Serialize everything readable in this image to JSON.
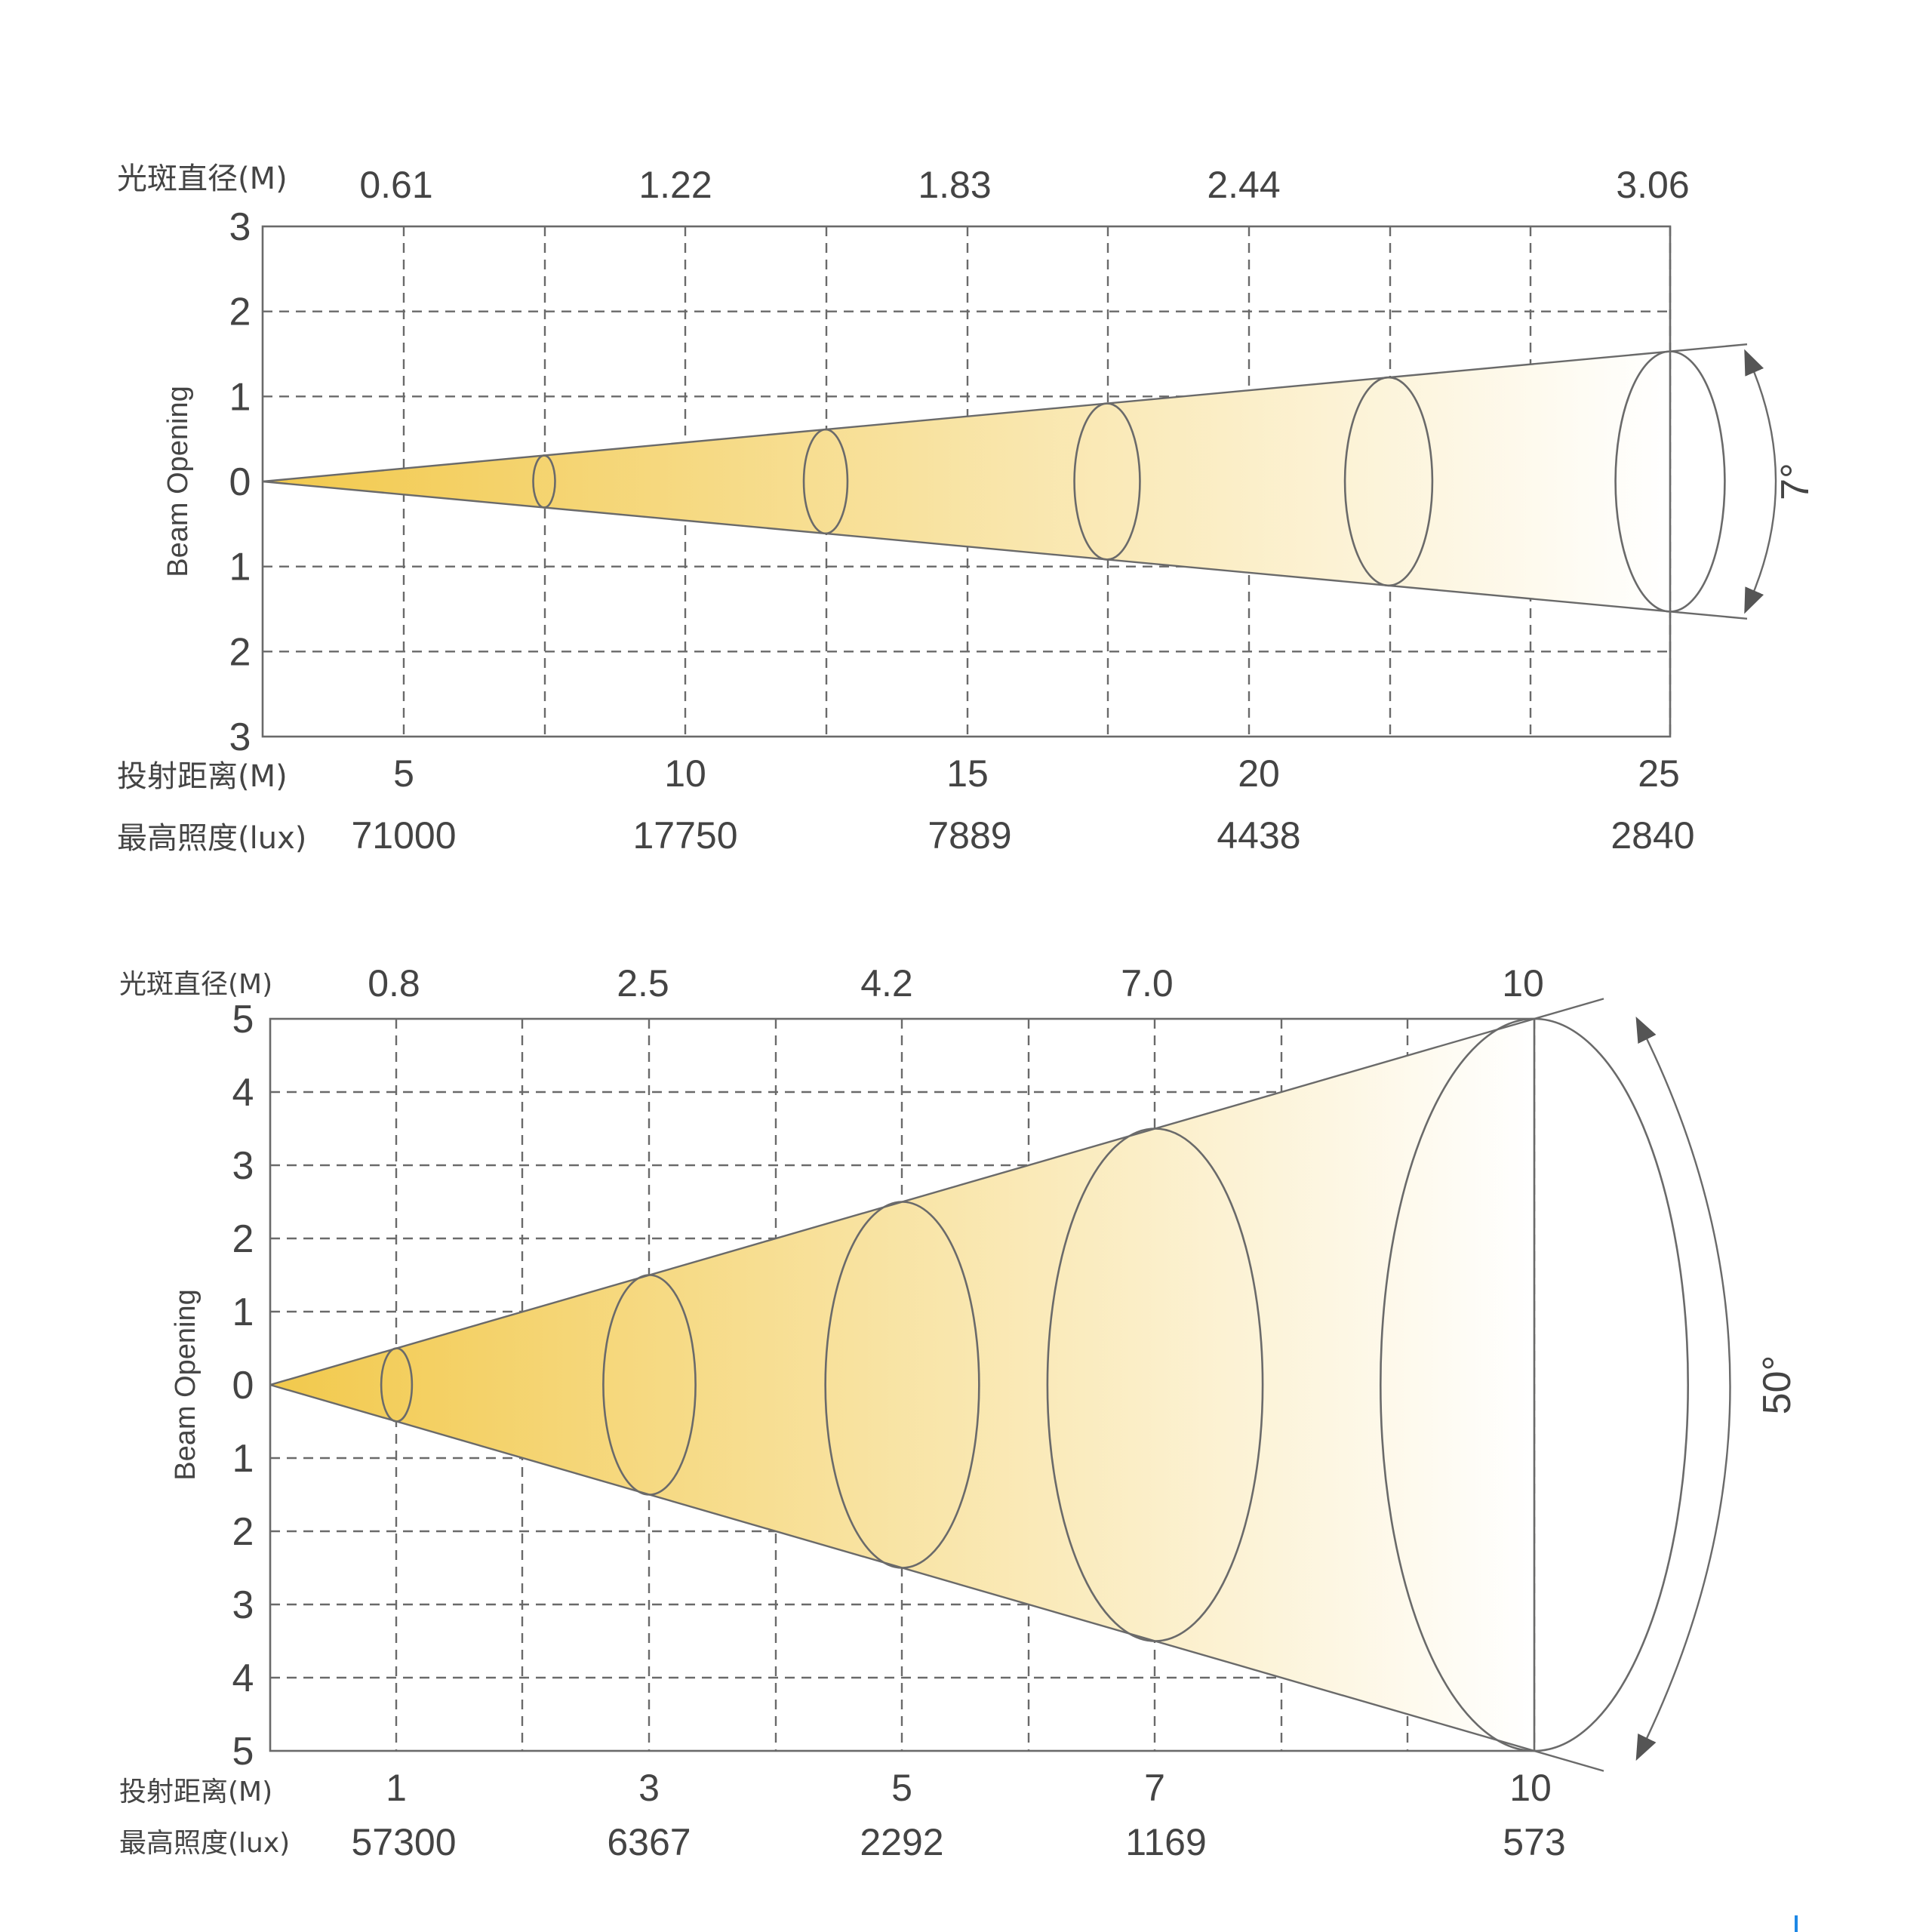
{
  "chart_data": [
    {
      "type": "diagram",
      "angle_label": "7°",
      "ylabel": "Beam Opening",
      "y_ticks": [
        "3",
        "2",
        "1",
        "0",
        "1",
        "2",
        "3"
      ],
      "row_labels": {
        "diameter": "光斑直径(M)",
        "distance": "投射距离(M)",
        "illuminance": "最高照度(lux)"
      },
      "distance": [
        "5",
        "10",
        "15",
        "20",
        "25"
      ],
      "diameter": [
        "0.61",
        "1.22",
        "1.83",
        "2.44",
        "3.06"
      ],
      "illuminance": [
        "71000",
        "17750",
        "7889",
        "4438",
        "2840"
      ],
      "distance_values": [
        5,
        10,
        15,
        20,
        25
      ],
      "diameter_values": [
        0.61,
        1.22,
        1.83,
        2.44,
        3.06
      ],
      "x_range": [
        0,
        25
      ],
      "y_range": [
        -3,
        3
      ],
      "grid": true
    },
    {
      "type": "diagram",
      "angle_label": "50°",
      "ylabel": "Beam Opening",
      "y_ticks": [
        "5",
        "4",
        "3",
        "2",
        "1",
        "0",
        "1",
        "2",
        "3",
        "4",
        "5"
      ],
      "row_labels": {
        "diameter": "光斑直径(M)",
        "distance": "投射距离(M)",
        "illuminance": "最高照度(lux)"
      },
      "distance": [
        "1",
        "3",
        "5",
        "7",
        "10"
      ],
      "diameter": [
        "0.8",
        "2.5",
        "4.2",
        "7.0",
        "10"
      ],
      "illuminance": [
        "57300",
        "6367",
        "2292",
        "1169",
        "573"
      ],
      "distance_values": [
        1,
        3,
        5,
        7,
        10
      ],
      "diameter_values": [
        0.8,
        2.5,
        4.2,
        7.0,
        10
      ],
      "x_range": [
        0,
        10
      ],
      "y_range": [
        -5,
        5
      ],
      "grid": true
    }
  ],
  "colors": {
    "beam_start": "#f2c94c",
    "beam_end": "#ffffff",
    "line": "#6a6a6a",
    "text": "#444444",
    "accent": "#1e88e5"
  }
}
